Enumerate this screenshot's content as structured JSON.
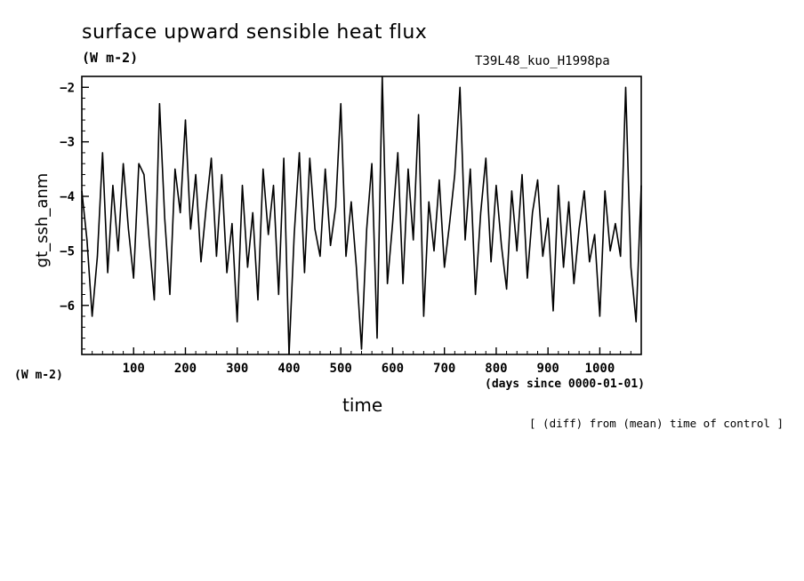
{
  "chart_data": {
    "type": "line",
    "title": "surface upward sensible heat flux",
    "units": "(W m-2)",
    "run_name": "T39L48_kuo_H1998pa",
    "ylabel": "gt_ssh_anm",
    "yunits": "(W m-2)",
    "xlabel": "time",
    "xunits": "(days since 0000-01-01)",
    "note": "[ (diff) from (mean) time of control ]",
    "xlim": [
      0,
      1080
    ],
    "ylim": [
      -6.9,
      -1.8
    ],
    "x_ticks": [
      100,
      200,
      300,
      400,
      500,
      600,
      700,
      800,
      900,
      1000
    ],
    "y_ticks": [
      -6,
      -5,
      -4,
      -3,
      -2
    ],
    "grid": false,
    "series": [
      {
        "color": "#000000",
        "x": [
          0,
          10,
          20,
          30,
          40,
          50,
          60,
          70,
          80,
          90,
          100,
          110,
          120,
          130,
          140,
          150,
          160,
          170,
          180,
          190,
          200,
          210,
          220,
          230,
          240,
          250,
          260,
          270,
          280,
          290,
          300,
          310,
          320,
          330,
          340,
          350,
          360,
          370,
          380,
          390,
          400,
          410,
          420,
          430,
          440,
          450,
          460,
          470,
          480,
          490,
          500,
          510,
          520,
          530,
          540,
          550,
          560,
          570,
          580,
          590,
          600,
          610,
          620,
          630,
          640,
          650,
          660,
          670,
          680,
          690,
          700,
          710,
          720,
          730,
          740,
          750,
          760,
          770,
          780,
          790,
          800,
          810,
          820,
          830,
          840,
          850,
          860,
          870,
          880,
          890,
          900,
          910,
          920,
          930,
          940,
          950,
          960,
          970,
          980,
          990,
          1000,
          1010,
          1020,
          1030,
          1040,
          1050,
          1060,
          1070,
          1080
        ],
        "y": [
          -3.9,
          -4.8,
          -6.2,
          -5.1,
          -3.2,
          -5.4,
          -3.8,
          -5.0,
          -3.4,
          -4.6,
          -5.5,
          -3.4,
          -3.6,
          -4.8,
          -5.9,
          -2.3,
          -4.4,
          -5.8,
          -3.5,
          -4.3,
          -2.6,
          -4.6,
          -3.6,
          -5.2,
          -4.2,
          -3.3,
          -5.1,
          -3.6,
          -5.4,
          -4.5,
          -6.3,
          -3.8,
          -5.3,
          -4.3,
          -5.9,
          -3.5,
          -4.7,
          -3.8,
          -5.8,
          -3.3,
          -6.9,
          -4.7,
          -3.2,
          -5.4,
          -3.3,
          -4.6,
          -5.1,
          -3.5,
          -4.9,
          -4.2,
          -2.3,
          -5.1,
          -4.1,
          -5.3,
          -6.8,
          -4.6,
          -3.4,
          -6.6,
          -1.8,
          -5.6,
          -4.5,
          -3.2,
          -5.6,
          -3.5,
          -4.8,
          -2.5,
          -6.2,
          -4.1,
          -5.0,
          -3.7,
          -5.3,
          -4.5,
          -3.6,
          -2.0,
          -4.8,
          -3.5,
          -5.8,
          -4.3,
          -3.3,
          -5.2,
          -3.8,
          -4.9,
          -5.7,
          -3.9,
          -5.0,
          -3.6,
          -5.5,
          -4.3,
          -3.7,
          -5.1,
          -4.4,
          -6.1,
          -3.8,
          -5.3,
          -4.1,
          -5.6,
          -4.6,
          -3.9,
          -5.2,
          -4.7,
          -6.2,
          -3.9,
          -5.0,
          -4.5,
          -5.1,
          -2.0,
          -5.3,
          -6.3,
          -3.8
        ]
      }
    ]
  }
}
